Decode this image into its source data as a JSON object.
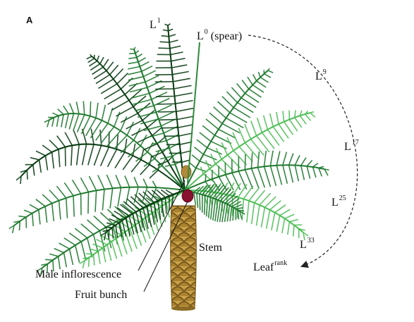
{
  "figure": {
    "panel_label": "A",
    "colors": {
      "frond_dark": "#0b3d14",
      "frond_mid": "#1f7a2e",
      "frond_light": "#4fbf57",
      "trunk": "#c9a24a",
      "trunk_shadow": "#6b4e16",
      "fruit_bunch": "#8a1030",
      "male_inflorescence": "#b08a3a",
      "arrow": "#222222"
    },
    "labels": {
      "l1": {
        "base": "L",
        "sup": "1"
      },
      "l0": {
        "base": "L",
        "sup": "0",
        "suffix": " (spear)"
      },
      "l9": {
        "base": "L",
        "sup": "9"
      },
      "l17": {
        "base": "L",
        "sup": "17"
      },
      "l25": {
        "base": "L",
        "sup": "25"
      },
      "l33": {
        "base": "L",
        "sup": "33"
      },
      "leaf_rank": {
        "base": "Leaf",
        "sup": "rank"
      },
      "stem": "Stem",
      "male_inflorescence": "Male inflorescence",
      "fruit_bunch": "Fruit bunch"
    }
  }
}
